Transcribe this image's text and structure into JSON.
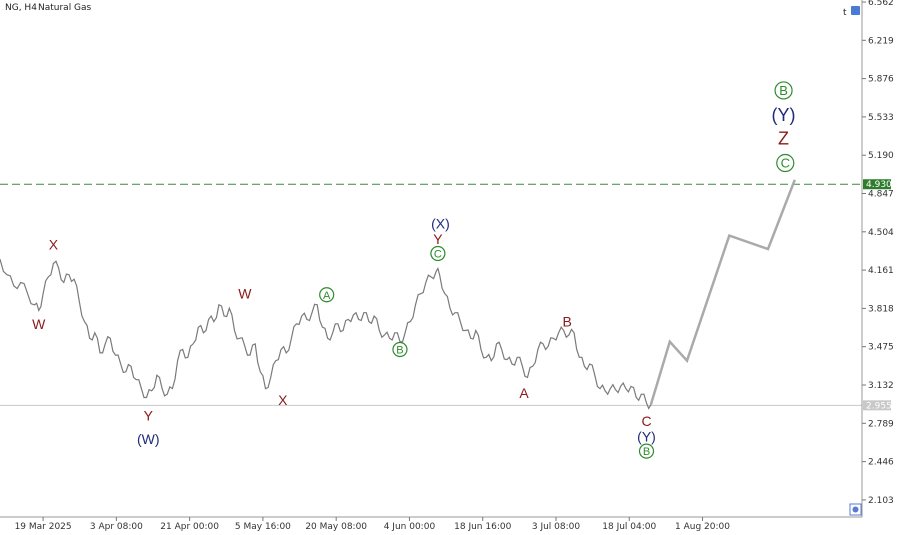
{
  "header": {
    "symbol": "NG, H4",
    "name": "Natural Gas"
  },
  "corner": {
    "top_right_icon": "t",
    "bottom_right_icon": "gear-icon"
  },
  "chart_data": {
    "type": "line",
    "ylim": [
      1.95,
      6.562
    ],
    "y_ticks": [
      "6.562",
      "6.219",
      "5.876",
      "5.533",
      "5.190",
      "4.847",
      "4.504",
      "4.161",
      "3.818",
      "3.475",
      "3.132",
      "2.789",
      "2.446",
      "2.103"
    ],
    "x_ticks": [
      "19 Mar 2025",
      "3 Apr 08:00",
      "21 Apr 00:00",
      "5 May 16:00",
      "20 May 08:00",
      "4 Jun 00:00",
      "18 Jun 16:00",
      "3 Jul 08:00",
      "18 Jul 04:00",
      "1 Aug 20:00"
    ],
    "x_range": [
      0,
      100
    ],
    "x_tick_positions": [
      5,
      13.5,
      22,
      30.5,
      39,
      47.5,
      56,
      64.5,
      73,
      81.5
    ],
    "price_line": {
      "value": 2.95,
      "label": "2.955",
      "color": "#c8c8c8"
    },
    "target_line": {
      "value": 4.93,
      "label": "4.930",
      "color": "#3a8a3a"
    },
    "price_series": [
      [
        0.0,
        4.26
      ],
      [
        0.8,
        4.12
      ],
      [
        1.6,
        4.02
      ],
      [
        2.4,
        4.05
      ],
      [
        3.2,
        3.95
      ],
      [
        4.0,
        3.85
      ],
      [
        4.5,
        3.8
      ],
      [
        5.0,
        3.95
      ],
      [
        5.6,
        4.1
      ],
      [
        6.2,
        4.22
      ],
      [
        6.8,
        4.18
      ],
      [
        7.4,
        4.05
      ],
      [
        8.0,
        4.12
      ],
      [
        8.6,
        4.08
      ],
      [
        9.2,
        3.88
      ],
      [
        9.8,
        3.7
      ],
      [
        10.4,
        3.55
      ],
      [
        11.0,
        3.6
      ],
      [
        11.6,
        3.42
      ],
      [
        12.2,
        3.5
      ],
      [
        12.8,
        3.55
      ],
      [
        13.4,
        3.4
      ],
      [
        14.0,
        3.32
      ],
      [
        14.6,
        3.25
      ],
      [
        15.2,
        3.3
      ],
      [
        15.8,
        3.18
      ],
      [
        16.4,
        3.1
      ],
      [
        17.0,
        3.02
      ],
      [
        17.6,
        3.08
      ],
      [
        18.2,
        3.22
      ],
      [
        18.8,
        3.1
      ],
      [
        19.4,
        3.05
      ],
      [
        20.0,
        3.1
      ],
      [
        20.6,
        3.35
      ],
      [
        21.2,
        3.45
      ],
      [
        21.8,
        3.38
      ],
      [
        22.4,
        3.5
      ],
      [
        23.0,
        3.65
      ],
      [
        23.6,
        3.6
      ],
      [
        24.2,
        3.72
      ],
      [
        24.8,
        3.7
      ],
      [
        25.4,
        3.85
      ],
      [
        26.0,
        3.75
      ],
      [
        26.6,
        3.82
      ],
      [
        27.2,
        3.62
      ],
      [
        27.8,
        3.55
      ],
      [
        28.4,
        3.48
      ],
      [
        29.0,
        3.4
      ],
      [
        29.6,
        3.5
      ],
      [
        30.2,
        3.25
      ],
      [
        30.8,
        3.1
      ],
      [
        31.4,
        3.2
      ],
      [
        32.0,
        3.35
      ],
      [
        32.6,
        3.45
      ],
      [
        33.2,
        3.42
      ],
      [
        33.8,
        3.55
      ],
      [
        34.4,
        3.68
      ],
      [
        35.0,
        3.75
      ],
      [
        35.6,
        3.72
      ],
      [
        36.2,
        3.78
      ],
      [
        36.8,
        3.85
      ],
      [
        37.4,
        3.65
      ],
      [
        38.0,
        3.55
      ],
      [
        38.6,
        3.6
      ],
      [
        39.2,
        3.68
      ],
      [
        39.8,
        3.62
      ],
      [
        40.4,
        3.72
      ],
      [
        41.0,
        3.76
      ],
      [
        41.6,
        3.72
      ],
      [
        42.2,
        3.78
      ],
      [
        42.8,
        3.7
      ],
      [
        43.4,
        3.75
      ],
      [
        44.0,
        3.62
      ],
      [
        44.6,
        3.58
      ],
      [
        45.2,
        3.55
      ],
      [
        45.8,
        3.6
      ],
      [
        46.4,
        3.52
      ],
      [
        47.0,
        3.6
      ],
      [
        47.6,
        3.7
      ],
      [
        48.2,
        3.85
      ],
      [
        48.8,
        3.95
      ],
      [
        49.4,
        4.05
      ],
      [
        50.0,
        4.1
      ],
      [
        50.6,
        4.15
      ],
      [
        51.0,
        4.12
      ],
      [
        51.6,
        3.95
      ],
      [
        52.2,
        3.82
      ],
      [
        52.8,
        3.78
      ],
      [
        53.4,
        3.7
      ],
      [
        54.0,
        3.62
      ],
      [
        54.6,
        3.55
      ],
      [
        55.2,
        3.62
      ],
      [
        55.8,
        3.45
      ],
      [
        56.4,
        3.38
      ],
      [
        57.0,
        3.35
      ],
      [
        57.6,
        3.5
      ],
      [
        58.2,
        3.45
      ],
      [
        58.8,
        3.36
      ],
      [
        59.4,
        3.32
      ],
      [
        60.0,
        3.38
      ],
      [
        60.6,
        3.3
      ],
      [
        61.2,
        3.2
      ],
      [
        61.8,
        3.3
      ],
      [
        62.4,
        3.45
      ],
      [
        63.0,
        3.5
      ],
      [
        63.6,
        3.48
      ],
      [
        64.2,
        3.55
      ],
      [
        64.8,
        3.6
      ],
      [
        65.4,
        3.62
      ],
      [
        66.0,
        3.58
      ],
      [
        66.6,
        3.6
      ],
      [
        67.2,
        3.38
      ],
      [
        67.8,
        3.3
      ],
      [
        68.4,
        3.32
      ],
      [
        69.0,
        3.22
      ],
      [
        69.6,
        3.1
      ],
      [
        70.2,
        3.08
      ],
      [
        70.8,
        3.1
      ],
      [
        71.4,
        3.09
      ],
      [
        72.0,
        3.12
      ],
      [
        72.6,
        3.1
      ],
      [
        73.2,
        3.12
      ],
      [
        73.8,
        3.02
      ],
      [
        74.4,
        3.05
      ],
      [
        75.0,
        2.97
      ],
      [
        75.5,
        2.955
      ]
    ],
    "projection": [
      [
        75.5,
        2.955
      ],
      [
        77.7,
        3.52
      ],
      [
        79.7,
        3.35
      ],
      [
        84.6,
        4.47
      ],
      [
        89.1,
        4.35
      ],
      [
        92.2,
        4.97
      ]
    ],
    "labels": [
      {
        "text": "X",
        "x": 6.2,
        "y": 4.39,
        "color": "red"
      },
      {
        "text": "W",
        "x": 4.5,
        "y": 3.68,
        "color": "red"
      },
      {
        "text": "Y",
        "x": 17.2,
        "y": 2.86,
        "color": "red"
      },
      {
        "text": "(W)",
        "x": 17.2,
        "y": 2.65,
        "color": "blue"
      },
      {
        "text": "W",
        "x": 28.4,
        "y": 3.95,
        "color": "red"
      },
      {
        "text": "X",
        "x": 32.8,
        "y": 3.0,
        "color": "red"
      },
      {
        "text": "A",
        "x": 37.9,
        "y": 3.94,
        "color": "green"
      },
      {
        "text": "B",
        "x": 46.4,
        "y": 3.45,
        "color": "green"
      },
      {
        "text": "(X)",
        "x": 51.1,
        "y": 4.58,
        "color": "blue"
      },
      {
        "text": "Y",
        "x": 50.8,
        "y": 4.44,
        "color": "red"
      },
      {
        "text": "C",
        "x": 50.8,
        "y": 4.31,
        "color": "green"
      },
      {
        "text": "B",
        "x": 65.8,
        "y": 3.7,
        "color": "red"
      },
      {
        "text": "A",
        "x": 60.8,
        "y": 3.06,
        "color": "red"
      },
      {
        "text": "C",
        "x": 75.0,
        "y": 2.81,
        "color": "red"
      },
      {
        "text": "(Y)",
        "x": 75.0,
        "y": 2.67,
        "color": "blue"
      },
      {
        "text": "B",
        "x": 75.0,
        "y": 2.54,
        "color": "green"
      },
      {
        "text": "B",
        "x": 90.9,
        "y": 5.77,
        "color": "green"
      },
      {
        "text": "(Y)",
        "x": 90.9,
        "y": 5.54,
        "color": "blue"
      },
      {
        "text": "Z",
        "x": 90.9,
        "y": 5.33,
        "color": "red"
      },
      {
        "text": "C",
        "x": 91.1,
        "y": 5.12,
        "color": "green"
      }
    ]
  }
}
